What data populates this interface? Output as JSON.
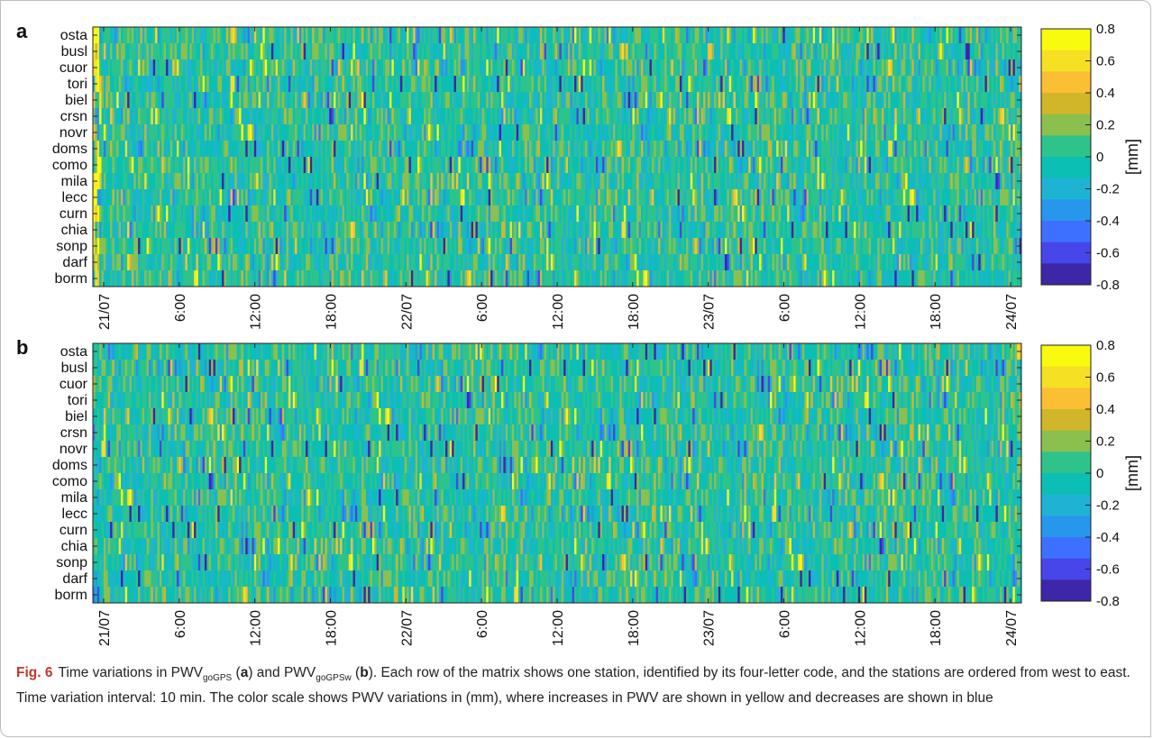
{
  "colors": {
    "colormap": [
      "#3e26a8",
      "#4746eb",
      "#3e70ff",
      "#2797eb",
      "#1fb3d3",
      "#0cbfb4",
      "#2ec38b",
      "#8bc04f",
      "#d1b629",
      "#fbbf34",
      "#f5e024",
      "#f9fb0e"
    ],
    "caption_label": "#c0392b"
  },
  "chart_data": [
    {
      "type": "heatmap",
      "panel_label": "a",
      "stations": [
        "osta",
        "busl",
        "cuor",
        "tori",
        "biel",
        "crsn",
        "novr",
        "doms",
        "como",
        "mila",
        "lecc",
        "curn",
        "chia",
        "sonp",
        "darf",
        "borm"
      ],
      "x_tick_labels": [
        "21/07",
        "6:00",
        "12:00",
        "18:00",
        "22/07",
        "6:00",
        "12:00",
        "18:00",
        "23/07",
        "6:00",
        "12:00",
        "18:00",
        "24/07"
      ],
      "x_range_hours": [
        0,
        72
      ],
      "time_interval_min": 10,
      "colorbar": {
        "ticks": [
          "0.8",
          "0.6",
          "0.4",
          "0.2",
          "0",
          "-0.2",
          "-0.4",
          "-0.6",
          "-0.8"
        ],
        "clim": [
          -0.8,
          0.8
        ],
        "label": "[mm]"
      },
      "note": "values: PWV variation (mm) per station per 10-min step; dense noisy field, approx. range -0.8 to 0.8"
    },
    {
      "type": "heatmap",
      "panel_label": "b",
      "stations": [
        "osta",
        "busl",
        "cuor",
        "tori",
        "biel",
        "crsn",
        "novr",
        "doms",
        "como",
        "mila",
        "lecc",
        "curn",
        "chia",
        "sonp",
        "darf",
        "borm"
      ],
      "x_tick_labels": [
        "21/07",
        "6:00",
        "12:00",
        "18:00",
        "22/07",
        "6:00",
        "12:00",
        "18:00",
        "23/07",
        "6:00",
        "12:00",
        "18:00",
        "24/07"
      ],
      "x_range_hours": [
        0,
        72
      ],
      "time_interval_min": 10,
      "colorbar": {
        "ticks": [
          "0.8",
          "0.6",
          "0.4",
          "0.2",
          "0",
          "-0.2",
          "-0.4",
          "-0.6",
          "-0.8"
        ],
        "clim": [
          -0.8,
          0.8
        ],
        "label": "[mm]"
      },
      "note": "values: PWV variation (mm) per station per 10-min step; dense noisy field, approx. range -0.8 to 0.8"
    }
  ],
  "caption": {
    "label": "Fig. 6",
    "t1": "Time variations in PWV",
    "sub1": "goGPS",
    "t2": " (",
    "b1": "a",
    "t3": ") and PWV",
    "sub2": "goGPSw",
    "t4": " (",
    "b2": "b",
    "t5": "). Each row of the matrix shows one station, identified by its four-letter code, and the stations are ordered from west to east. Time variation interval: 10 min. The color scale shows PWV variations in (mm), where increases in PWV are shown in yellow and decreases are shown in blue"
  }
}
